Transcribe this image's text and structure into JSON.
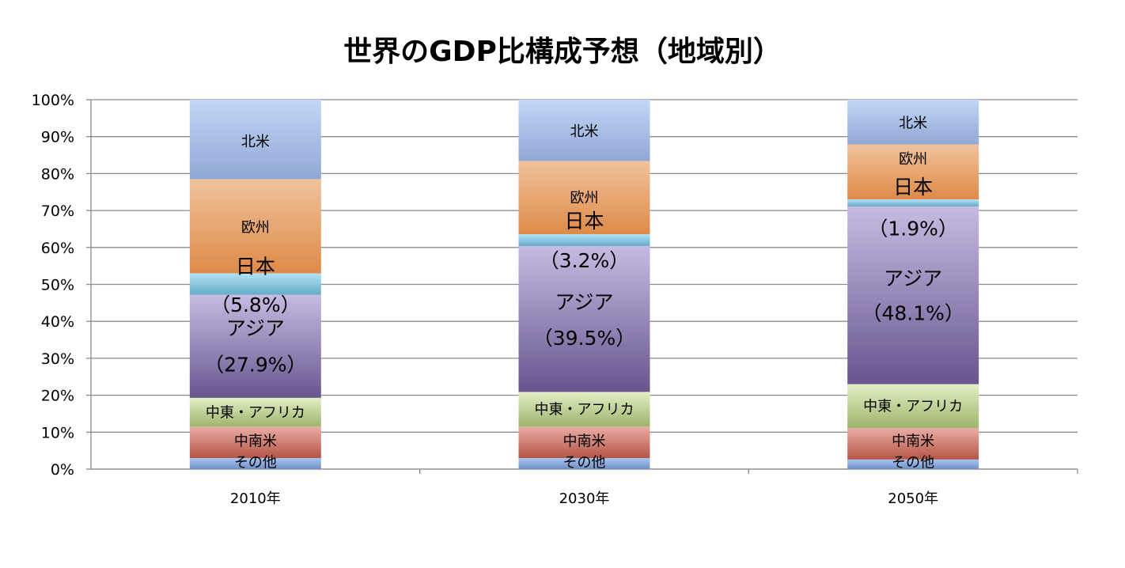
{
  "chart_data": {
    "type": "bar",
    "stacked": true,
    "title": "世界のGDP比構成予想（地域別）",
    "xlabel": "",
    "ylabel": "",
    "ylim": [
      0,
      100
    ],
    "yticks": [
      "0%",
      "10%",
      "20%",
      "30%",
      "40%",
      "50%",
      "60%",
      "70%",
      "80%",
      "90%",
      "100%"
    ],
    "grid": true,
    "categories": [
      "2010年",
      "2030年",
      "2050年"
    ],
    "series": [
      {
        "name": "その他",
        "values": [
          3.0,
          3.0,
          2.6
        ],
        "colors": [
          "#a9c5ee",
          "#6f8fc8"
        ]
      },
      {
        "name": "中南米",
        "values": [
          8.5,
          8.5,
          8.5
        ],
        "colors": [
          "#eaaca4",
          "#b55546"
        ]
      },
      {
        "name": "中東・アフリカ",
        "values": [
          7.8,
          9.4,
          11.9
        ],
        "colors": [
          "#e2efc4",
          "#9db46c"
        ]
      },
      {
        "name": "アジア",
        "values": [
          27.9,
          39.5,
          48.1
        ],
        "colors": [
          "#c6bbe2",
          "#67568e"
        ]
      },
      {
        "name": "日本",
        "values": [
          5.8,
          3.2,
          1.9
        ],
        "colors": [
          "#b3e2f5",
          "#66acc8"
        ]
      },
      {
        "name": "欧州",
        "values": [
          25.5,
          19.8,
          14.9
        ],
        "colors": [
          "#f0c29c",
          "#de8a48"
        ]
      },
      {
        "name": "北米",
        "values": [
          21.5,
          16.6,
          12.1
        ],
        "colors": [
          "#c2d6f6",
          "#91a8d5"
        ]
      }
    ],
    "annotations": [
      [
        {
          "text": "北米",
          "at": 88.5,
          "style": "small"
        },
        {
          "text": "欧州",
          "at": 65.3,
          "style": "small"
        },
        {
          "text": "日本",
          "at": 54.8,
          "style": "big"
        },
        {
          "text": "（5.8%）",
          "at": 44.4,
          "style": "big"
        },
        {
          "text": "アジア",
          "at": 38.1,
          "style": "big"
        },
        {
          "text": "（27.9%）",
          "at": 28.3,
          "style": "big"
        },
        {
          "text": "中東・アフリカ",
          "at": 15.2,
          "style": "mid"
        },
        {
          "text": "中南米",
          "at": 7.5,
          "style": "mid"
        },
        {
          "text": "その他",
          "at": 1.7,
          "style": "mid"
        }
      ],
      [
        {
          "text": "北米",
          "at": 91.3,
          "style": "small"
        },
        {
          "text": "欧州",
          "at": 73.3,
          "style": "small"
        },
        {
          "text": "日本",
          "at": 67.1,
          "style": "big"
        },
        {
          "text": "（3.2%）",
          "at": 56.4,
          "style": "big"
        },
        {
          "text": "アジア",
          "at": 45.2,
          "style": "big"
        },
        {
          "text": "（39.5%）",
          "at": 35.4,
          "style": "big"
        },
        {
          "text": "中東・アフリカ",
          "at": 16.1,
          "style": "mid"
        },
        {
          "text": "中南米",
          "at": 7.5,
          "style": "mid"
        },
        {
          "text": "その他",
          "at": 1.7,
          "style": "mid"
        }
      ],
      [
        {
          "text": "北米",
          "at": 93.6,
          "style": "small"
        },
        {
          "text": "欧州",
          "at": 83.8,
          "style": "small"
        },
        {
          "text": "日本",
          "at": 76.3,
          "style": "big"
        },
        {
          "text": "（1.9%）",
          "at": 65.1,
          "style": "big"
        },
        {
          "text": "アジア",
          "at": 51.6,
          "style": "big"
        },
        {
          "text": "（48.1%）",
          "at": 42.2,
          "style": "big"
        },
        {
          "text": "中東・アフリカ",
          "at": 16.9,
          "style": "mid"
        },
        {
          "text": "中南米",
          "at": 7.5,
          "style": "mid"
        },
        {
          "text": "その他",
          "at": 1.7,
          "style": "mid"
        }
      ]
    ]
  }
}
